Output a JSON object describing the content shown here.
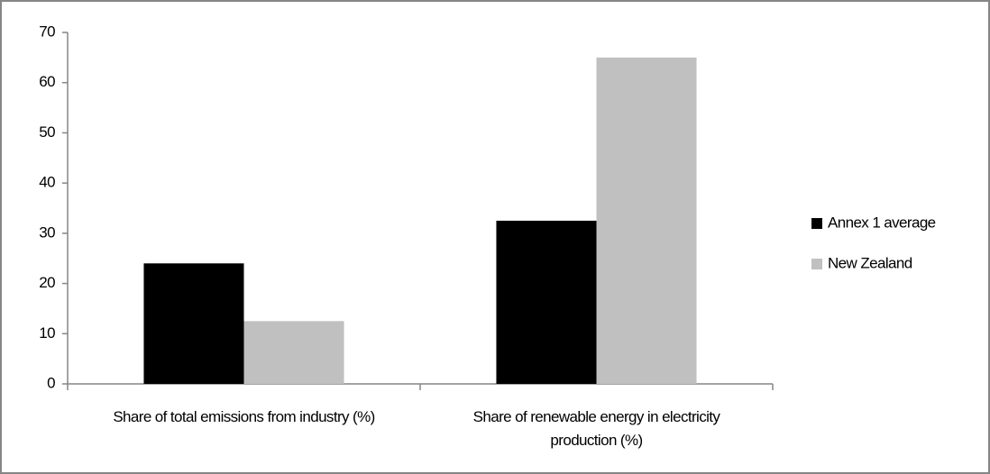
{
  "chart_data": {
    "type": "bar",
    "categories": [
      "Share of total emissions from industry (%)",
      "Share of renewable energy in electricity production (%)"
    ],
    "series": [
      {
        "name": "Annex 1 average",
        "color": "#000000",
        "values": [
          24,
          32.5
        ]
      },
      {
        "name": "New Zealand",
        "color": "#c0c0c0",
        "values": [
          12.5,
          65
        ]
      }
    ],
    "ylim": [
      0,
      70
    ],
    "yticks": [
      0,
      10,
      20,
      30,
      40,
      50,
      60,
      70
    ],
    "grid": false,
    "legend": "right"
  }
}
